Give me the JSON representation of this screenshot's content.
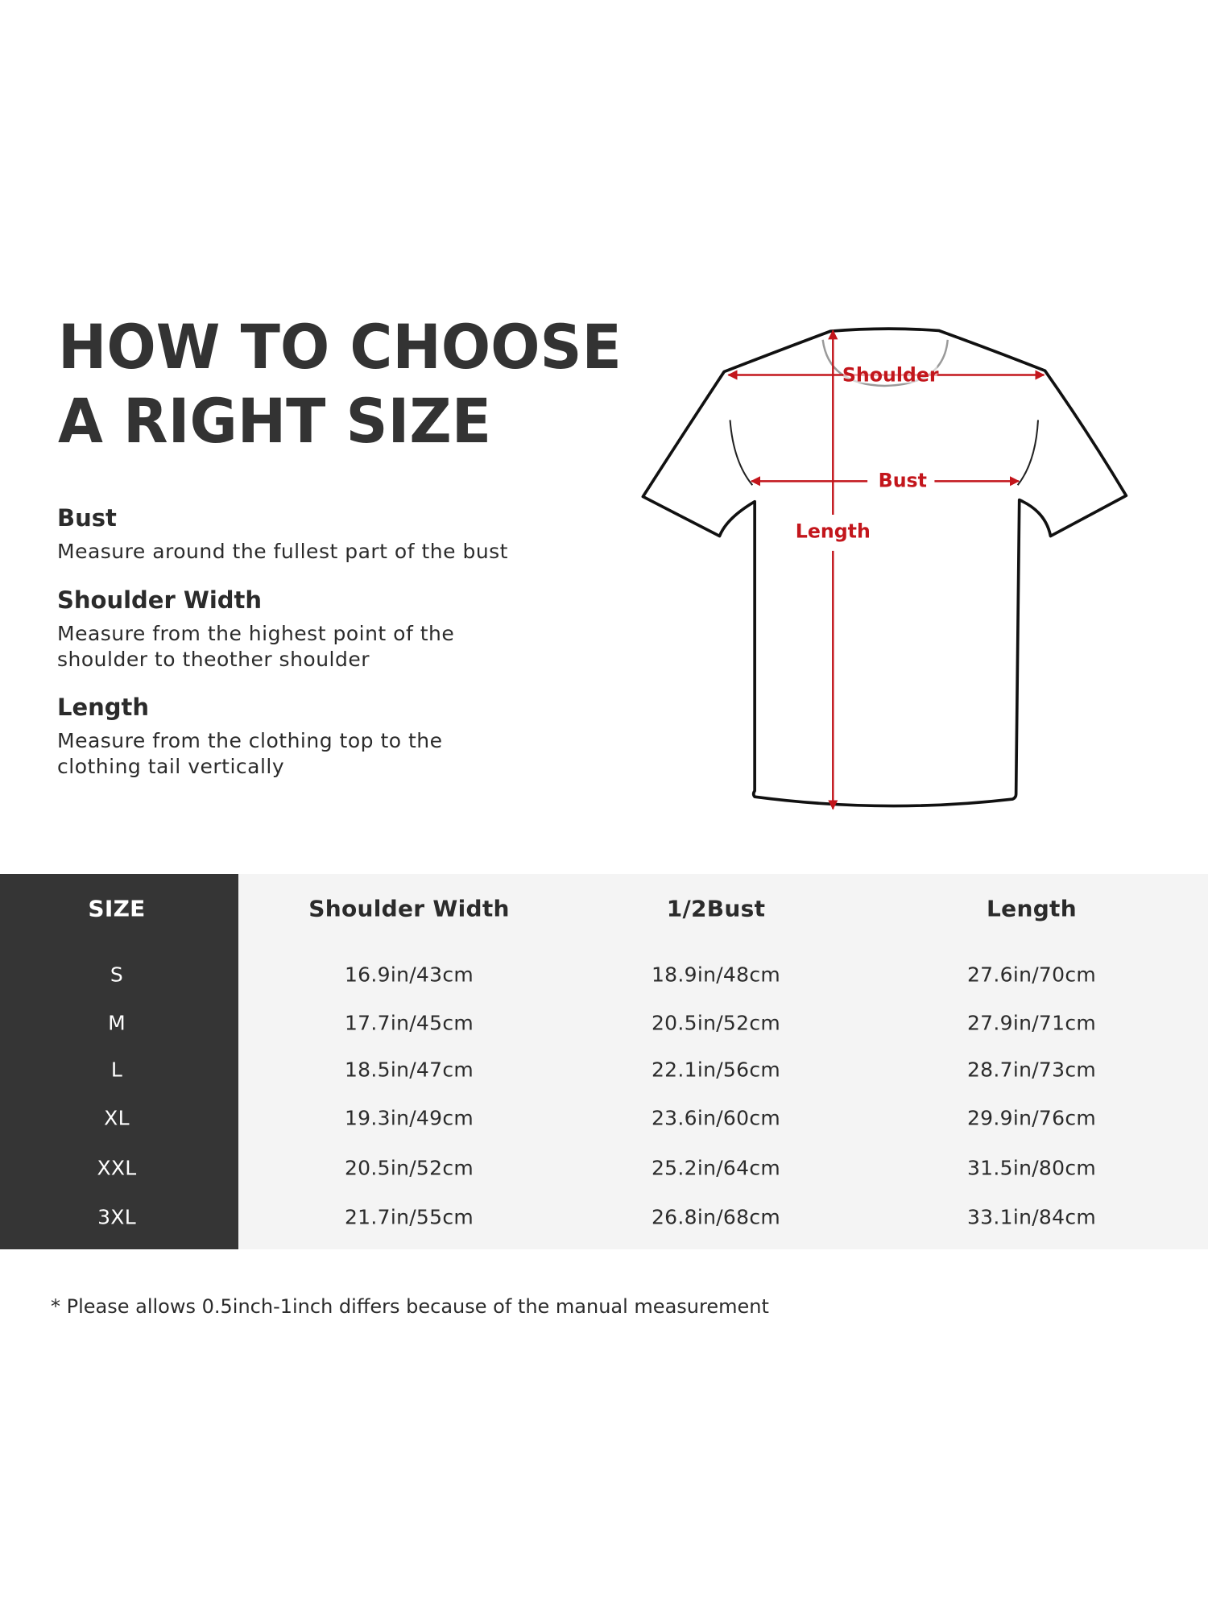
{
  "title": {
    "line1": "HOW TO CHOOSE",
    "line2": "A RIGHT SIZE"
  },
  "guide": [
    {
      "heading": "Bust",
      "lines": [
        "Measure around the fullest part of the bust"
      ]
    },
    {
      "heading": "Shoulder Width",
      "lines": [
        "Measure from the highest point of the",
        "shoulder to theother shoulder"
      ]
    },
    {
      "heading": "Length",
      "lines": [
        "Measure from the clothing top to the",
        "clothing tail vertically"
      ]
    }
  ],
  "diagram": {
    "labels": {
      "shoulder": "Shoulder",
      "bust": "Bust",
      "length": "Length"
    },
    "colors": {
      "outline": "#111111",
      "measure": "#c3161c",
      "collar": "#9a9a9a"
    }
  },
  "table": {
    "headers": [
      "SIZE",
      "Shoulder Width",
      "1/2Bust",
      "Length"
    ],
    "rows": [
      [
        "S",
        "16.9in/43cm",
        "18.9in/48cm",
        "27.6in/70cm"
      ],
      [
        "M",
        "17.7in/45cm",
        "20.5in/52cm",
        "27.9in/71cm"
      ],
      [
        "L",
        "18.5in/47cm",
        "22.1in/56cm",
        "28.7in/73cm"
      ],
      [
        "XL",
        "19.3in/49cm",
        "23.6in/60cm",
        "29.9in/76cm"
      ],
      [
        "XXL",
        "20.5in/52cm",
        "25.2in/64cm",
        "31.5in/80cm"
      ],
      [
        "3XL",
        "21.7in/55cm",
        "26.8in/68cm",
        "33.1in/84cm"
      ]
    ],
    "colors": {
      "size_column": "#353535",
      "body": "#f4f4f4"
    }
  },
  "footnote": "* Please allows 0.5inch-1inch differs because of the  manual measurement"
}
